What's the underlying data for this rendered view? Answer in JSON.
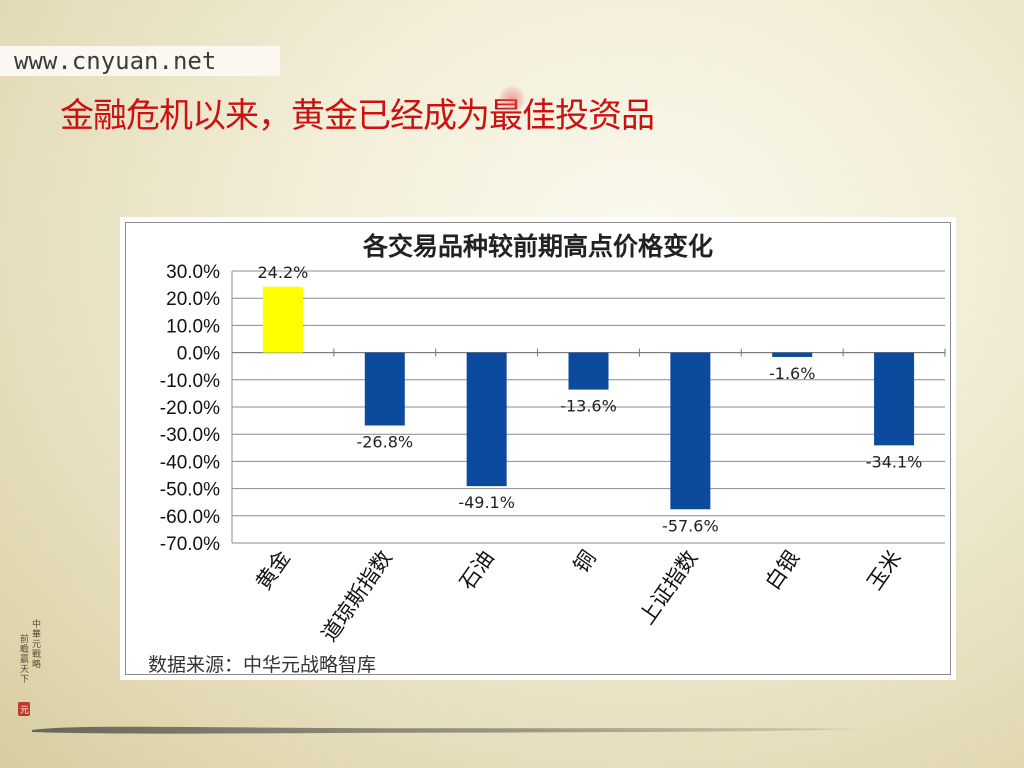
{
  "site_url": "www.cnyuan.net",
  "headline": "金融危机以来，黄金已经成为最佳投资品",
  "chart_data": {
    "type": "bar",
    "title": "各交易品种较前期高点价格变化",
    "categories": [
      "黄金",
      "道琼斯指数",
      "石油",
      "铜",
      "上证指数",
      "白银",
      "玉米"
    ],
    "values": [
      24.2,
      -26.8,
      -49.1,
      -13.6,
      -57.6,
      -1.6,
      -34.1
    ],
    "data_labels": [
      "24.2%",
      "-26.8%",
      "-49.1%",
      "-13.6%",
      "-57.6%",
      "-1.6%",
      "-34.1%"
    ],
    "y_ticks": [
      "30.0%",
      "20.0%",
      "10.0%",
      "0.0%",
      "-10.0%",
      "-20.0%",
      "-30.0%",
      "-40.0%",
      "-50.0%",
      "-60.0%",
      "-70.0%"
    ],
    "ylim": [
      -70,
      30
    ],
    "grid": true,
    "colors": {
      "positive": "#ffff00",
      "negative": "#0b4a9c"
    },
    "source_note": "数据来源：中华元战略智库"
  },
  "seal_text": "中華元戰略 前瞻贏天下"
}
